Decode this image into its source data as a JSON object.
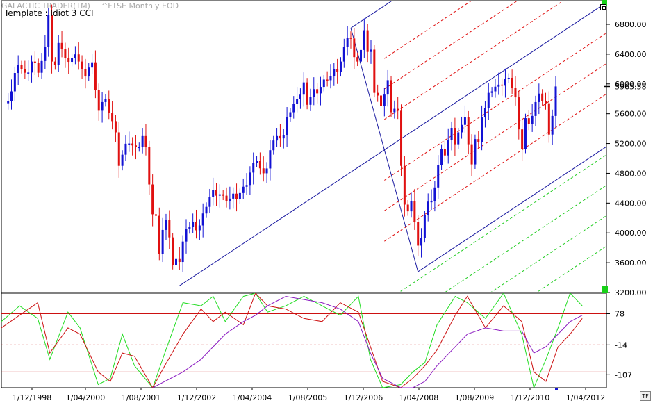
{
  "header": {
    "app_title": "GALACTIC TRADER(TM)",
    "symbol_title": "^FTSE Monthly EOD",
    "template_label": "Template : Idiot 3 CCI"
  },
  "controls": {
    "tf_label": "TF"
  },
  "colors": {
    "up_candle": "#1212d4",
    "down_candle": "#e01010",
    "pitchfork": "#1a1aa0",
    "red_channel": "#e01010",
    "green_channel": "#22cc22",
    "cci_green": "#22dd22",
    "cci_red": "#cc1111",
    "cci_purple": "#8a1ac0",
    "price_marker": "#000000",
    "green_square": "#18d018"
  },
  "chart_data": [
    {
      "type": "candlestick",
      "title": "^FTSE Monthly EOD",
      "ylim": [
        3200,
        6950
      ],
      "yticks": [
        "6800.00",
        "6400.00",
        "6000.00",
        "5600.00",
        "5200.00",
        "4800.00",
        "4400.00",
        "4000.00",
        "3600.00",
        "3200.00"
      ],
      "last_price": "5965.58",
      "x_range": [
        "1998-10",
        "2012-07"
      ],
      "closes": [
        {
          "t": "1998-11",
          "c": 5740
        },
        {
          "t": "1999-01",
          "c": 5900
        },
        {
          "t": "1999-03",
          "c": 6250
        },
        {
          "t": "1999-05",
          "c": 6150
        },
        {
          "t": "1999-07",
          "c": 6300
        },
        {
          "t": "1999-09",
          "c": 6150
        },
        {
          "t": "1999-11",
          "c": 6500
        },
        {
          "t": "1999-12",
          "c": 6930
        },
        {
          "t": "2000-01",
          "c": 6300
        },
        {
          "t": "2000-02",
          "c": 6250
        },
        {
          "t": "2000-03",
          "c": 6550
        },
        {
          "t": "2000-05",
          "c": 6350
        },
        {
          "t": "2000-07",
          "c": 6350
        },
        {
          "t": "2000-09",
          "c": 6300
        },
        {
          "t": "2000-11",
          "c": 6100
        },
        {
          "t": "2000-12",
          "c": 6220
        },
        {
          "t": "2001-01",
          "c": 6290
        },
        {
          "t": "2001-02",
          "c": 5920
        },
        {
          "t": "2001-03",
          "c": 5640
        },
        {
          "t": "2001-05",
          "c": 5800
        },
        {
          "t": "2001-07",
          "c": 5500
        },
        {
          "t": "2001-08",
          "c": 5350
        },
        {
          "t": "2001-09",
          "c": 4900
        },
        {
          "t": "2001-10",
          "c": 5050
        },
        {
          "t": "2001-12",
          "c": 5200
        },
        {
          "t": "2002-02",
          "c": 5150
        },
        {
          "t": "2002-04",
          "c": 5300
        },
        {
          "t": "2002-05",
          "c": 5150
        },
        {
          "t": "2002-06",
          "c": 4650
        },
        {
          "t": "2002-07",
          "c": 4250
        },
        {
          "t": "2002-08",
          "c": 4230
        },
        {
          "t": "2002-09",
          "c": 3720
        },
        {
          "t": "2002-10",
          "c": 4040
        },
        {
          "t": "2002-11",
          "c": 4170
        },
        {
          "t": "2002-12",
          "c": 3940
        },
        {
          "t": "2003-01",
          "c": 3570
        },
        {
          "t": "2003-02",
          "c": 3650
        },
        {
          "t": "2003-03",
          "c": 3610
        },
        {
          "t": "2003-05",
          "c": 4050
        },
        {
          "t": "2003-07",
          "c": 4150
        },
        {
          "t": "2003-09",
          "c": 4100
        },
        {
          "t": "2003-11",
          "c": 4350
        },
        {
          "t": "2003-12",
          "c": 4480
        },
        {
          "t": "2004-02",
          "c": 4500
        },
        {
          "t": "2004-04",
          "c": 4500
        },
        {
          "t": "2004-06",
          "c": 4460
        },
        {
          "t": "2004-08",
          "c": 4450
        },
        {
          "t": "2004-10",
          "c": 4620
        },
        {
          "t": "2004-12",
          "c": 4810
        },
        {
          "t": "2005-02",
          "c": 4970
        },
        {
          "t": "2005-04",
          "c": 4800
        },
        {
          "t": "2005-06",
          "c": 5110
        },
        {
          "t": "2005-08",
          "c": 5300
        },
        {
          "t": "2005-10",
          "c": 5310
        },
        {
          "t": "2005-12",
          "c": 5620
        },
        {
          "t": "2006-02",
          "c": 5800
        },
        {
          "t": "2006-04",
          "c": 6020
        },
        {
          "t": "2006-05",
          "c": 5720
        },
        {
          "t": "2006-07",
          "c": 5930
        },
        {
          "t": "2006-09",
          "c": 5960
        },
        {
          "t": "2006-11",
          "c": 6050
        },
        {
          "t": "2007-01",
          "c": 6200
        },
        {
          "t": "2007-03",
          "c": 6300
        },
        {
          "t": "2007-05",
          "c": 6620
        },
        {
          "t": "2007-06",
          "c": 6610
        },
        {
          "t": "2007-07",
          "c": 6360
        },
        {
          "t": "2007-08",
          "c": 6300
        },
        {
          "t": "2007-10",
          "c": 6720
        },
        {
          "t": "2007-11",
          "c": 6430
        },
        {
          "t": "2007-12",
          "c": 6460
        },
        {
          "t": "2008-01",
          "c": 5880
        },
        {
          "t": "2008-03",
          "c": 5700
        },
        {
          "t": "2008-05",
          "c": 6050
        },
        {
          "t": "2008-06",
          "c": 5620
        },
        {
          "t": "2008-08",
          "c": 5640
        },
        {
          "t": "2008-09",
          "c": 4900
        },
        {
          "t": "2008-10",
          "c": 4380
        },
        {
          "t": "2008-11",
          "c": 4290
        },
        {
          "t": "2008-12",
          "c": 4430
        },
        {
          "t": "2009-01",
          "c": 4150
        },
        {
          "t": "2009-02",
          "c": 3830
        },
        {
          "t": "2009-03",
          "c": 3930
        },
        {
          "t": "2009-04",
          "c": 4240
        },
        {
          "t": "2009-05",
          "c": 4420
        },
        {
          "t": "2009-07",
          "c": 4610
        },
        {
          "t": "2009-08",
          "c": 4910
        },
        {
          "t": "2009-09",
          "c": 5130
        },
        {
          "t": "2009-10",
          "c": 5040
        },
        {
          "t": "2009-12",
          "c": 5410
        },
        {
          "t": "2010-01",
          "c": 5190
        },
        {
          "t": "2010-02",
          "c": 5350
        },
        {
          "t": "2010-04",
          "c": 5550
        },
        {
          "t": "2010-05",
          "c": 5190
        },
        {
          "t": "2010-06",
          "c": 4920
        },
        {
          "t": "2010-07",
          "c": 5260
        },
        {
          "t": "2010-08",
          "c": 5220
        },
        {
          "t": "2010-09",
          "c": 5550
        },
        {
          "t": "2010-10",
          "c": 5680
        },
        {
          "t": "2010-12",
          "c": 5900
        },
        {
          "t": "2011-02",
          "c": 5990
        },
        {
          "t": "2011-04",
          "c": 6070
        },
        {
          "t": "2011-06",
          "c": 5950
        },
        {
          "t": "2011-07",
          "c": 5820
        },
        {
          "t": "2011-08",
          "c": 5390
        },
        {
          "t": "2011-09",
          "c": 5130
        },
        {
          "t": "2011-10",
          "c": 5540
        },
        {
          "t": "2011-12",
          "c": 5570
        },
        {
          "t": "2012-02",
          "c": 5870
        },
        {
          "t": "2012-03",
          "c": 5770
        },
        {
          "t": "2012-04",
          "c": 5740
        },
        {
          "t": "2012-05",
          "c": 5320
        },
        {
          "t": "2012-06",
          "c": 5570
        },
        {
          "t": "2012-07",
          "c": 5966
        }
      ],
      "pitchfork": {
        "pivot_a": {
          "t": "2003-03",
          "v": 3290
        },
        "pivot_b": {
          "t": "2007-06",
          "v": 6750
        },
        "pivot_c": {
          "t": "2009-02",
          "v": 3480
        }
      }
    },
    {
      "type": "line",
      "title": "CCI",
      "yticks": [
        "78",
        "-14",
        "-107"
      ],
      "ylim": [
        -150,
        150
      ],
      "levels": [
        {
          "value": 85,
          "style": "solid"
        },
        {
          "value": -14,
          "style": "dashed"
        },
        {
          "value": -100,
          "style": "solid"
        }
      ],
      "x_labels": [
        "1/12/1998",
        "1/04/2000",
        "1/08/2001",
        "1/12/2002",
        "1/04/2004",
        "1/08/2005",
        "1/12/2006",
        "1/04/2008",
        "1/08/2009",
        "1/12/2010",
        "1/04/2012"
      ],
      "series": [
        {
          "color": "cci_green",
          "values": [
            [
              0,
              60
            ],
            [
              0.03,
              110
            ],
            [
              0.06,
              70
            ],
            [
              0.08,
              -60
            ],
            [
              0.11,
              90
            ],
            [
              0.13,
              40
            ],
            [
              0.16,
              -140
            ],
            [
              0.18,
              -120
            ],
            [
              0.2,
              20
            ],
            [
              0.22,
              -80
            ],
            [
              0.25,
              -150
            ],
            [
              0.27,
              -40
            ],
            [
              0.3,
              120
            ],
            [
              0.33,
              110
            ],
            [
              0.35,
              140
            ],
            [
              0.37,
              60
            ],
            [
              0.4,
              140
            ],
            [
              0.42,
              150
            ],
            [
              0.44,
              90
            ],
            [
              0.47,
              110
            ],
            [
              0.5,
              140
            ],
            [
              0.53,
              110
            ],
            [
              0.56,
              80
            ],
            [
              0.59,
              140
            ],
            [
              0.61,
              -60
            ],
            [
              0.63,
              -150
            ],
            [
              0.66,
              -140
            ],
            [
              0.68,
              -100
            ],
            [
              0.7,
              -70
            ],
            [
              0.72,
              50
            ],
            [
              0.75,
              140
            ],
            [
              0.77,
              120
            ],
            [
              0.8,
              70
            ],
            [
              0.83,
              150
            ],
            [
              0.86,
              20
            ],
            [
              0.88,
              -150
            ],
            [
              0.9,
              -60
            ],
            [
              0.92,
              40
            ],
            [
              0.94,
              150
            ],
            [
              0.96,
              110
            ]
          ]
        },
        {
          "color": "cci_red",
          "values": [
            [
              0,
              40
            ],
            [
              0.03,
              80
            ],
            [
              0.06,
              120
            ],
            [
              0.08,
              -40
            ],
            [
              0.11,
              40
            ],
            [
              0.13,
              20
            ],
            [
              0.16,
              -100
            ],
            [
              0.18,
              -130
            ],
            [
              0.2,
              -40
            ],
            [
              0.22,
              -50
            ],
            [
              0.25,
              -150
            ],
            [
              0.27,
              -80
            ],
            [
              0.3,
              20
            ],
            [
              0.33,
              100
            ],
            [
              0.35,
              60
            ],
            [
              0.37,
              90
            ],
            [
              0.4,
              50
            ],
            [
              0.42,
              150
            ],
            [
              0.44,
              110
            ],
            [
              0.47,
              100
            ],
            [
              0.5,
              70
            ],
            [
              0.53,
              60
            ],
            [
              0.56,
              120
            ],
            [
              0.59,
              90
            ],
            [
              0.61,
              -20
            ],
            [
              0.63,
              -130
            ],
            [
              0.66,
              -150
            ],
            [
              0.68,
              -120
            ],
            [
              0.7,
              -80
            ],
            [
              0.72,
              -30
            ],
            [
              0.75,
              80
            ],
            [
              0.77,
              140
            ],
            [
              0.8,
              40
            ],
            [
              0.83,
              110
            ],
            [
              0.86,
              60
            ],
            [
              0.88,
              -100
            ],
            [
              0.9,
              -130
            ],
            [
              0.92,
              -20
            ],
            [
              0.94,
              20
            ],
            [
              0.96,
              70
            ]
          ]
        },
        {
          "color": "cci_purple",
          "values": [
            [
              0.25,
              -150
            ],
            [
              0.27,
              -130
            ],
            [
              0.3,
              -100
            ],
            [
              0.33,
              -60
            ],
            [
              0.35,
              -20
            ],
            [
              0.37,
              20
            ],
            [
              0.4,
              60
            ],
            [
              0.42,
              80
            ],
            [
              0.44,
              110
            ],
            [
              0.47,
              140
            ],
            [
              0.5,
              130
            ],
            [
              0.53,
              120
            ],
            [
              0.56,
              100
            ],
            [
              0.59,
              60
            ],
            [
              0.61,
              -40
            ],
            [
              0.63,
              -120
            ],
            [
              0.66,
              -150
            ],
            [
              0.68,
              -150
            ],
            [
              0.7,
              -130
            ],
            [
              0.72,
              -80
            ],
            [
              0.75,
              -20
            ],
            [
              0.77,
              20
            ],
            [
              0.8,
              40
            ],
            [
              0.83,
              30
            ],
            [
              0.86,
              30
            ],
            [
              0.88,
              -40
            ],
            [
              0.9,
              -20
            ],
            [
              0.92,
              20
            ],
            [
              0.94,
              60
            ],
            [
              0.96,
              80
            ]
          ]
        }
      ]
    }
  ]
}
